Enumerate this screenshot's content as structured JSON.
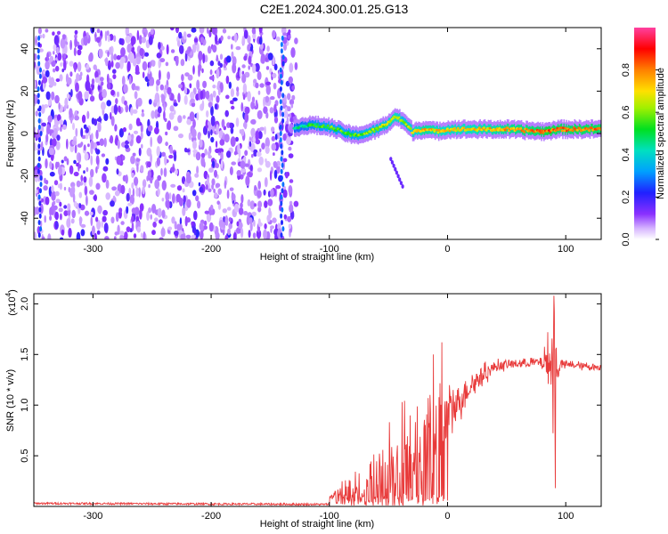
{
  "title": "C2E1.2024.300.01.25.G13",
  "chart_data": [
    {
      "type": "heatmap",
      "xlabel": "Height of straight line (km)",
      "ylabel": "Frequency (Hz)",
      "xlim": [
        -350,
        130
      ],
      "ylim": [
        -50,
        50
      ],
      "x_ticks": [
        -300,
        -200,
        -100,
        0,
        100
      ],
      "y_ticks": [
        -40,
        -20,
        0,
        20,
        40
      ],
      "colorbar": {
        "label": "Normalized spectral amplitude",
        "range": [
          0.0,
          1.0
        ],
        "ticks": [
          "0.0",
          "0.2",
          "0.4",
          "0.6",
          "0.8"
        ],
        "tick_values": [
          0.0,
          0.2,
          0.4,
          0.6,
          0.8
        ]
      },
      "noise_region": {
        "x": [
          -350,
          -128
        ],
        "amplitude": 0.15
      },
      "ridge": {
        "x": [
          -130,
          -115,
          -100,
          -90,
          -80,
          -70,
          -60,
          -50,
          -45,
          -38,
          -30,
          -20,
          -10,
          0,
          20,
          50,
          80,
          85,
          90,
          100,
          130
        ],
        "freq": [
          3,
          4,
          3,
          1,
          -1,
          0,
          2,
          5,
          8,
          6,
          1,
          2,
          1,
          2,
          2,
          2,
          1,
          1,
          2,
          2,
          2
        ],
        "amplitude": [
          0.45,
          0.5,
          0.55,
          0.55,
          0.55,
          0.6,
          0.6,
          0.65,
          0.7,
          0.6,
          0.65,
          0.75,
          0.7,
          0.7,
          0.7,
          0.75,
          0.8,
          0.85,
          0.8,
          0.8,
          0.8
        ]
      },
      "secondary_trace": {
        "x": [
          -48,
          -38
        ],
        "freq": [
          -12,
          -25
        ]
      }
    },
    {
      "type": "line",
      "xlabel": "Height of straight line (km)",
      "ylabel": "SNR (10 * v/v)",
      "y_multiplier": "(x10",
      "y_multiplier_exp": "4",
      "y_multiplier_close": ")",
      "xlim": [
        -350,
        130
      ],
      "ylim": [
        0.0,
        2.1
      ],
      "x_ticks": [
        -300,
        -200,
        -100,
        0,
        100
      ],
      "y_ticks": [
        0.5,
        1.0,
        1.5,
        2.0
      ],
      "y_tick_labels": [
        "0.5",
        "1.0",
        "1.5",
        "2.0"
      ],
      "color": "#e83a3a",
      "baseline": {
        "x": [
          -350,
          -100
        ],
        "y": [
          0.03,
          0.02
        ]
      },
      "envelope": {
        "x": [
          -100,
          -90,
          -80,
          -70,
          -60,
          -50,
          -40,
          -30,
          -20,
          -10,
          -5,
          0,
          10,
          20,
          30,
          40,
          50,
          60,
          70,
          80,
          88,
          90,
          92,
          95,
          100,
          110,
          120,
          130
        ],
        "mean": [
          0.08,
          0.12,
          0.15,
          0.18,
          0.22,
          0.3,
          0.45,
          0.55,
          0.65,
          0.7,
          0.75,
          0.9,
          1.05,
          1.2,
          1.3,
          1.38,
          1.4,
          1.41,
          1.42,
          1.42,
          1.42,
          1.4,
          1.38,
          1.4,
          1.4,
          1.39,
          1.38,
          1.37
        ],
        "amp": [
          0.05,
          0.1,
          0.2,
          0.22,
          0.25,
          0.35,
          0.4,
          0.45,
          0.45,
          0.45,
          0.4,
          0.2,
          0.15,
          0.1,
          0.08,
          0.05,
          0.04,
          0.04,
          0.04,
          0.05,
          0.3,
          0.6,
          0.3,
          0.05,
          0.03,
          0.03,
          0.03,
          0.03
        ]
      },
      "spikes": [
        {
          "x": 90,
          "y": 2.08
        },
        {
          "x": 91,
          "y": 0.18
        },
        {
          "x": -5,
          "y": 1.62
        },
        {
          "x": -12,
          "y": 1.5
        }
      ]
    }
  ]
}
